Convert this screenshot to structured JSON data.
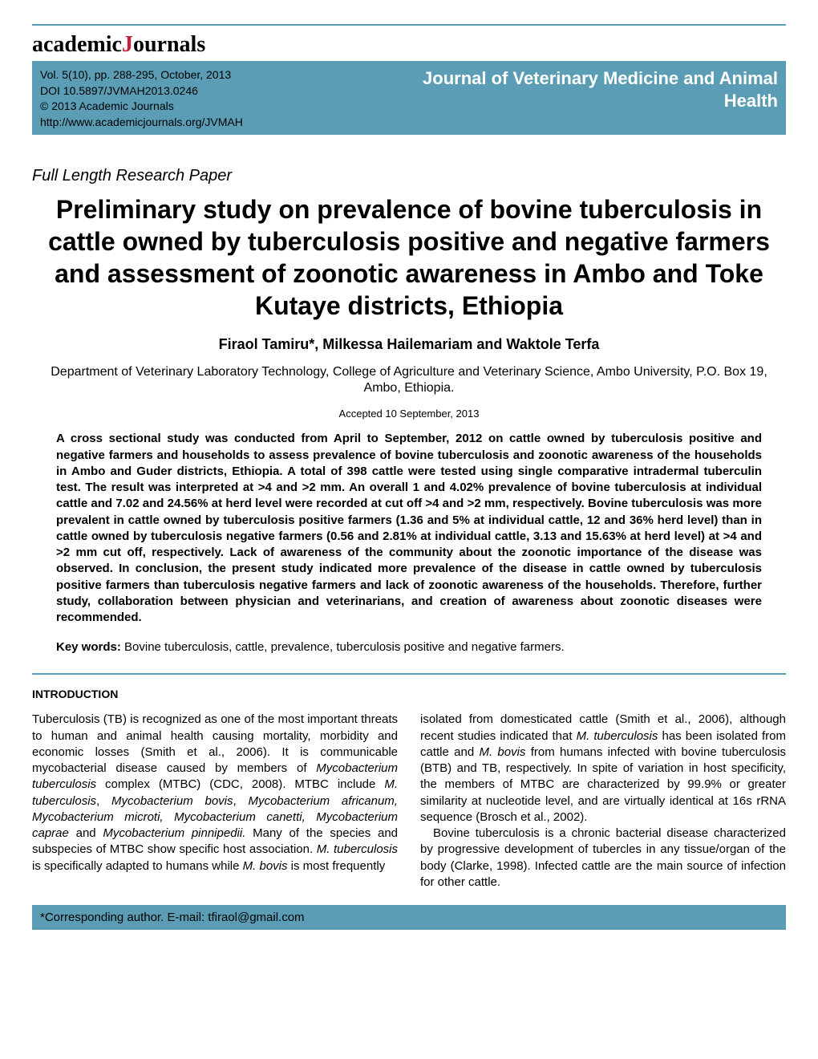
{
  "logo": {
    "academic": "academic",
    "journals": "ournals",
    "j": "J"
  },
  "info": {
    "vol": "Vol. 5(10), pp. 288-295, October, 2013",
    "doi": "DOI 10.5897/JVMAH2013.0246",
    "copyright": "© 2013 Academic Journals",
    "url": "http://www.academicjournals.org/JVMAH",
    "journal_name_line1": "Journal of Veterinary Medicine and Animal",
    "journal_name_line2": "Health"
  },
  "paper_type": "Full Length Research Paper",
  "title": "Preliminary study on prevalence of bovine tuberculosis in cattle owned by tuberculosis positive and negative farmers and assessment of zoonotic awareness in Ambo and Toke Kutaye districts, Ethiopia",
  "authors": "Firaol Tamiru*, Milkessa Hailemariam and Waktole Terfa",
  "affiliation": "Department of Veterinary Laboratory Technology, College of Agriculture and Veterinary Science, Ambo University, P.O. Box 19, Ambo, Ethiopia.",
  "accepted": "Accepted 10 September, 2013",
  "abstract": "A cross sectional study was conducted from April to September, 2012 on cattle owned by tuberculosis positive and negative farmers and households to assess prevalence of bovine tuberculosis and zoonotic awareness of the households in Ambo and Guder districts, Ethiopia. A total of 398 cattle were tested using single comparative intradermal tuberculin test. The result was interpreted at >4 and >2 mm. An overall 1 and 4.02% prevalence of bovine tuberculosis at individual cattle and 7.02 and 24.56% at herd level were recorded at cut off >4 and >2 mm, respectively. Bovine tuberculosis was more prevalent in cattle owned by tuberculosis positive farmers (1.36 and 5% at individual cattle, 12 and 36% herd level) than in cattle owned by tuberculosis negative farmers (0.56 and 2.81% at individual cattle, 3.13 and 15.63% at herd level) at >4 and >2 mm cut off, respectively. Lack of awareness of the community about the zoonotic importance of the disease was observed. In conclusion, the present study indicated more prevalence of the disease in cattle owned by tuberculosis positive farmers than tuberculosis negative farmers and lack of zoonotic awareness of the households. Therefore, further study, collaboration between physician and veterinarians, and creation of awareness about zoonotic diseases were recommended.",
  "keywords_label": "Key words:",
  "keywords": " Bovine tuberculosis, cattle, prevalence, tuberculosis positive and negative farmers.",
  "intro_heading": "INTRODUCTION",
  "col_left": {
    "p1a": "Tuberculosis (TB) is recognized as one of the most important threats to human and animal health causing mortality, morbidity and economic losses (Smith et al., 2006). It is communicable mycobacterial disease caused by members of ",
    "p1b": "Mycobacterium tuberculosis",
    "p1c": " complex (MTBC) (CDC, 2008). MTBC include ",
    "p1d": "M. tuberculosis",
    "p1e": ", ",
    "p1f": "Mycobacterium bovis",
    "p1g": ", ",
    "p1h": "Mycobacterium africanum, Mycobacterium microti, Mycobacterium canetti, Mycobacterium caprae",
    "p1i": " and ",
    "p1j": "Mycobacterium pinnipedii.",
    "p1k": " Many of the species and subspecies of MTBC show specific host association. ",
    "p1l": "M. tuberculosis",
    "p1m": " is specifically adapted to humans while ",
    "p1n": "M. bovis",
    "p1o": " is most frequently"
  },
  "col_right": {
    "p1a": "isolated from domesticated cattle (Smith et al., 2006), although recent studies indicated that ",
    "p1b": "M. tuberculosis",
    "p1c": " has been isolated from cattle and ",
    "p1d": "M. bovis",
    "p1e": " from humans infected with bovine tuberculosis (BTB) and TB, respectively. In spite of variation in host specificity, the members of MTBC are characterized by 99.9% or greater similarity at nucleotide level, and are virtually identical at 16s rRNA sequence (Brosch et al., 2002).",
    "p2": "Bovine tuberculosis is a chronic bacterial disease characterized by progressive development of tubercles in any tissue/organ of the body (Clarke, 1998). Infected cattle are the  main  source  of  infection  for  other  cattle."
  },
  "corresponding_label": "*Corresponding author. E-mail: ",
  "corresponding_email": "tfiraol@gmail.com",
  "colors": {
    "band": "#5a9db5",
    "journal_text": "#ffffff",
    "logo_j": "#c41e3a",
    "text": "#000000",
    "bg": "#ffffff"
  },
  "fonts": {
    "body": "Arial",
    "logo": "Georgia",
    "band_left": "Trebuchet MS",
    "title_size": 32,
    "authors_size": 18,
    "abstract_size": 15
  }
}
